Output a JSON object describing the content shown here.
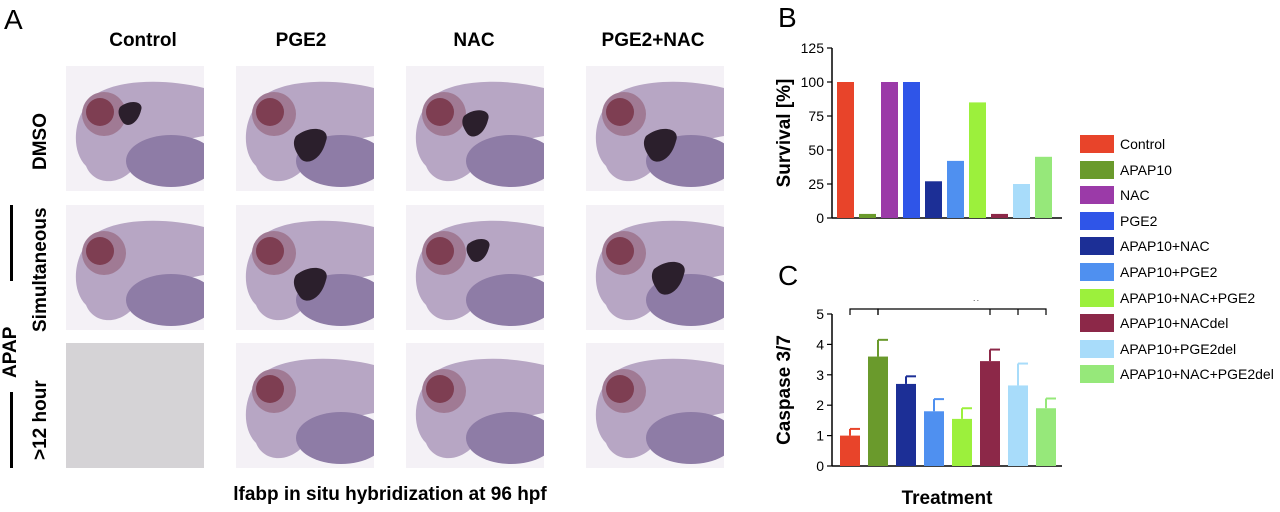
{
  "panels": {
    "a": "A",
    "b": "B",
    "c": "C"
  },
  "panel_a": {
    "columns": [
      "Control",
      "PGE2",
      "NAC",
      "PGE2+NAC"
    ],
    "row_labels": {
      "dmso": "DMSO",
      "simultaneous": "Simultaneous",
      "apap": "APAP",
      "late": ">12 hour"
    },
    "caption": "lfabp in situ hybridization at 96 hpf"
  },
  "legend": [
    {
      "label": "Control",
      "color": "#e8442a"
    },
    {
      "label": "APAP10",
      "color": "#6a9a2c"
    },
    {
      "label": "NAC",
      "color": "#9b3aa8"
    },
    {
      "label": "PGE2",
      "color": "#2f55e8"
    },
    {
      "label": "APAP10+NAC",
      "color": "#1c2f96"
    },
    {
      "label": "APAP10+PGE2",
      "color": "#4f90f0"
    },
    {
      "label": "APAP10+NAC+PGE2",
      "color": "#9cf03c"
    },
    {
      "label": "APAP10+NACdel",
      "color": "#8c2848"
    },
    {
      "label": "APAP10+PGE2del",
      "color": "#a8dcfa"
    },
    {
      "label": "APAP10+NAC+PGE2del",
      "color": "#96e87a"
    }
  ],
  "chart_data": [
    {
      "panel": "B",
      "type": "bar",
      "ylabel": "Survival [%]",
      "xlabel": "",
      "ylim": [
        0,
        125
      ],
      "yticks": [
        0,
        25,
        50,
        75,
        100,
        125
      ],
      "categories": [
        "Control",
        "APAP10",
        "NAC",
        "PGE2",
        "APAP10+NAC",
        "APAP10+PGE2",
        "APAP10+NAC+PGE2",
        "APAP10+NACdel",
        "APAP10+PGE2del",
        "APAP10+NAC+PGE2del"
      ],
      "values": [
        100,
        3,
        100,
        100,
        27,
        42,
        85,
        3,
        25,
        45
      ]
    },
    {
      "panel": "C",
      "type": "bar",
      "ylabel": "Caspase 3/7",
      "xlabel": "Treatment",
      "ylim": [
        0,
        5
      ],
      "yticks": [
        0,
        1,
        2,
        3,
        4,
        5
      ],
      "categories": [
        "Control",
        "APAP10",
        "APAP10+NAC",
        "APAP10+PGE2",
        "APAP10+NAC+PGE2",
        "APAP10+NACdel",
        "APAP10+PGE2del",
        "APAP10+NAC+PGE2del"
      ],
      "values": [
        1.0,
        3.6,
        2.7,
        1.8,
        1.55,
        3.45,
        2.65,
        1.9
      ],
      "errors": [
        0.22,
        0.55,
        0.25,
        0.4,
        0.35,
        0.38,
        0.72,
        0.32
      ],
      "significance": "*"
    }
  ]
}
